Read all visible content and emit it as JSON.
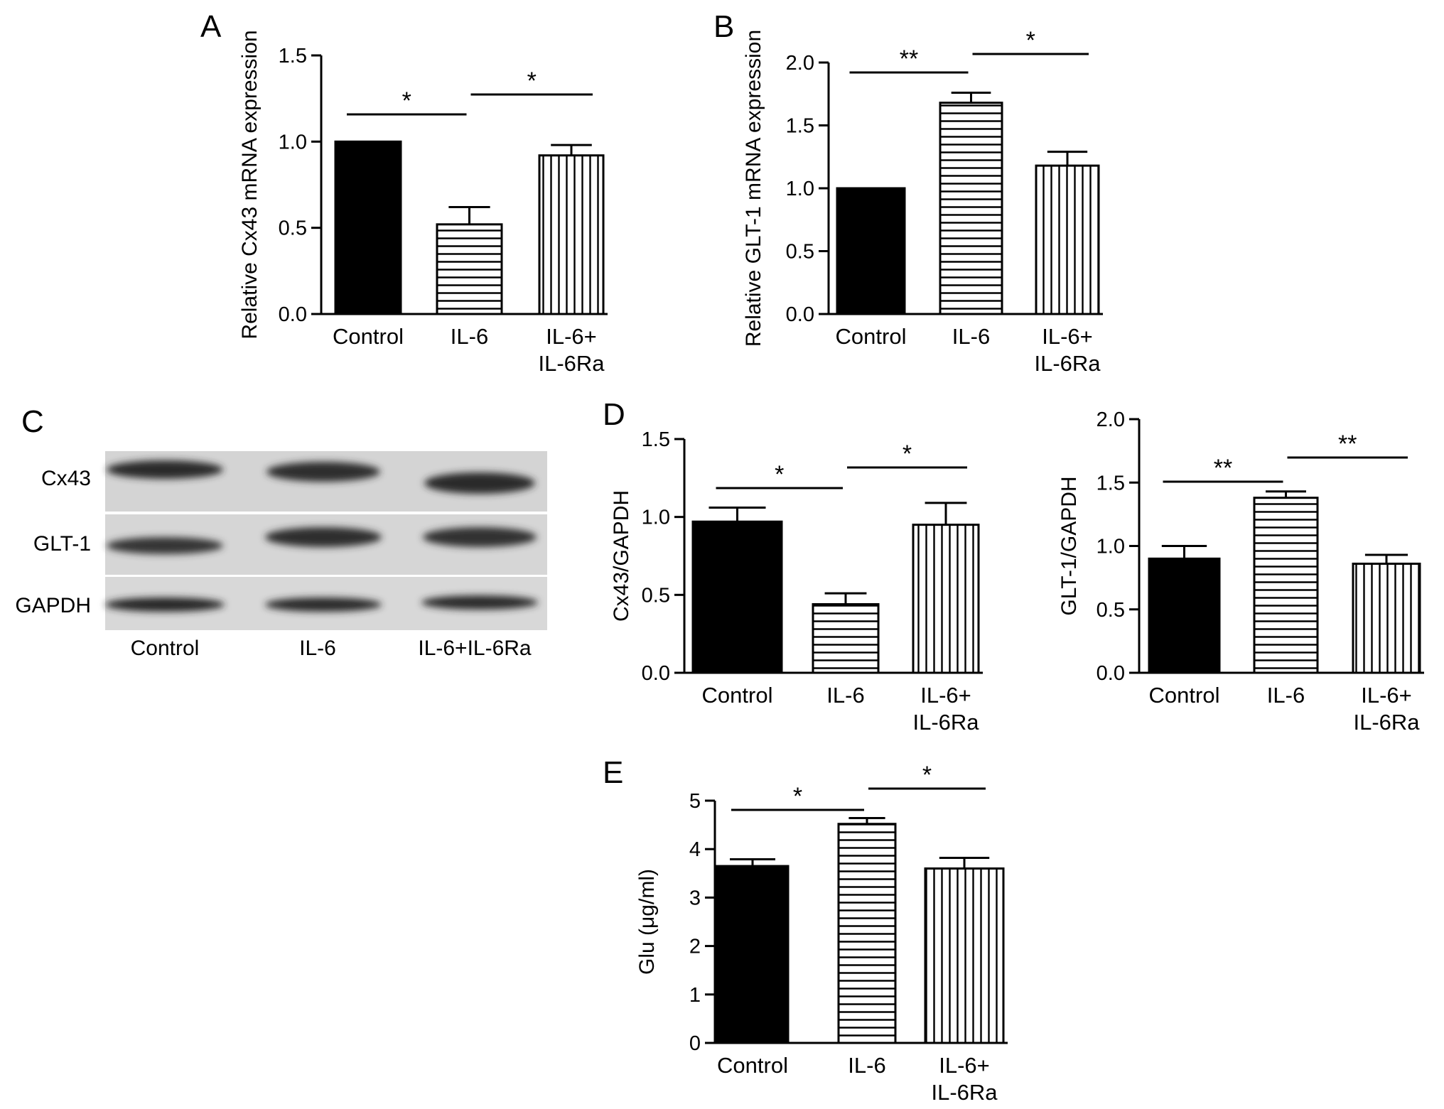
{
  "chart_data": [
    {
      "panel": "A",
      "type": "bar",
      "ylabel": "Relative Cx43 mRNA expression",
      "ylim": [
        0,
        1.5
      ],
      "yticks": [
        "0.0",
        "0.5",
        "1.0",
        "1.5"
      ],
      "categories": [
        [
          "Control"
        ],
        [
          "IL-6"
        ],
        [
          "IL-6+",
          "IL-6Ra"
        ]
      ],
      "values": [
        1.0,
        0.52,
        0.92
      ],
      "errors": [
        0,
        0.1,
        0.06
      ],
      "patterns": [
        "solid",
        "horizontal",
        "vertical"
      ],
      "significance": [
        {
          "from": 0,
          "to": 1,
          "label": "*"
        },
        {
          "from": 1,
          "to": 2,
          "label": "*"
        }
      ]
    },
    {
      "panel": "B",
      "type": "bar",
      "ylabel": "Relative GLT-1 mRNA expression",
      "ylim": [
        0,
        2.0
      ],
      "yticks": [
        "0.0",
        "0.5",
        "1.0",
        "1.5",
        "2.0"
      ],
      "categories": [
        [
          "Control"
        ],
        [
          "IL-6"
        ],
        [
          "IL-6+",
          "IL-6Ra"
        ]
      ],
      "values": [
        1.0,
        1.68,
        1.18
      ],
      "errors": [
        0,
        0.08,
        0.11
      ],
      "patterns": [
        "solid",
        "horizontal",
        "vertical"
      ],
      "significance": [
        {
          "from": 0,
          "to": 1,
          "label": "**"
        },
        {
          "from": 1,
          "to": 2,
          "label": "*"
        }
      ]
    },
    {
      "panel": "D",
      "type": "bar",
      "ylabel": "Cx43/GAPDH",
      "ylim": [
        0,
        1.5
      ],
      "yticks": [
        "0.0",
        "0.5",
        "1.0",
        "1.5"
      ],
      "categories": [
        [
          "Control"
        ],
        [
          "IL-6"
        ],
        [
          "IL-6+",
          "IL-6Ra"
        ]
      ],
      "values": [
        0.97,
        0.44,
        0.95
      ],
      "errors": [
        0.09,
        0.07,
        0.14
      ],
      "patterns": [
        "solid",
        "horizontal",
        "vertical"
      ],
      "significance": [
        {
          "from": 0,
          "to": 1,
          "label": "*"
        },
        {
          "from": 1,
          "to": 2,
          "label": "*"
        }
      ]
    },
    {
      "panel": "",
      "type": "bar",
      "ylabel": "GLT-1/GAPDH",
      "ylim": [
        0,
        2.0
      ],
      "yticks": [
        "0.0",
        "0.5",
        "1.0",
        "1.5",
        "2.0"
      ],
      "categories": [
        [
          "Control"
        ],
        [
          "IL-6"
        ],
        [
          "IL-6+",
          "IL-6Ra"
        ]
      ],
      "values": [
        0.9,
        1.38,
        0.86
      ],
      "errors": [
        0.1,
        0.05,
        0.07
      ],
      "patterns": [
        "solid",
        "horizontal",
        "vertical"
      ],
      "significance": [
        {
          "from": 0,
          "to": 1,
          "label": "**"
        },
        {
          "from": 1,
          "to": 2,
          "label": "**"
        }
      ]
    },
    {
      "panel": "E",
      "type": "bar",
      "ylabel": "Glu (μg/ml)",
      "ylim": [
        0,
        5
      ],
      "yticks": [
        "0",
        "1",
        "2",
        "3",
        "4",
        "5"
      ],
      "categories": [
        [
          "Control"
        ],
        [
          "IL-6"
        ],
        [
          "IL-6+",
          "IL-6Ra"
        ]
      ],
      "values": [
        3.65,
        4.52,
        3.6
      ],
      "errors": [
        0.14,
        0.12,
        0.22
      ],
      "patterns": [
        "solid",
        "horizontal",
        "vertical"
      ],
      "significance": [
        {
          "from": 0,
          "to": 1,
          "label": "*"
        },
        {
          "from": 1,
          "to": 2,
          "label": "*"
        }
      ]
    }
  ],
  "western_blot": {
    "panel": "C",
    "rows": [
      "Cx43",
      "GLT-1",
      "GAPDH"
    ],
    "lanes": [
      "Control",
      "IL-6",
      "IL-6+IL-6Ra"
    ]
  }
}
